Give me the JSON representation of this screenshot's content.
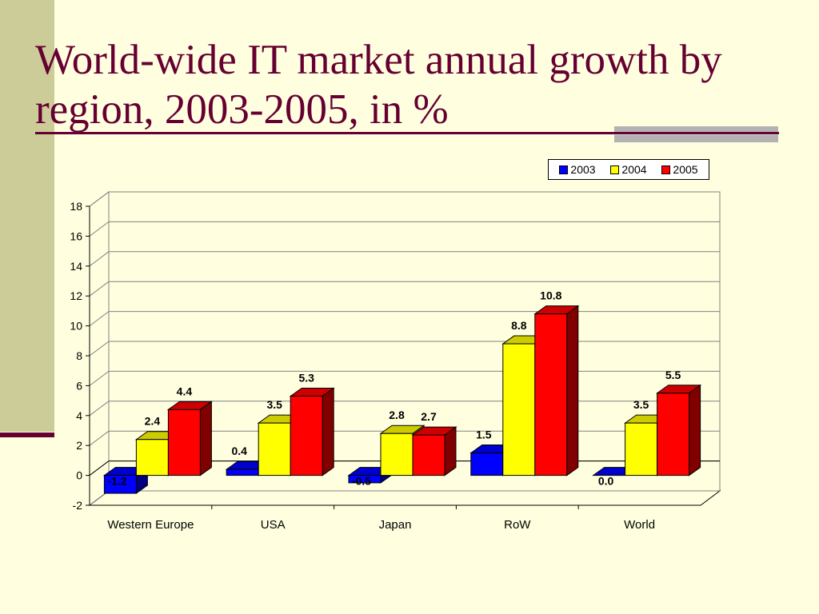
{
  "slide": {
    "title": "World-wide IT market annual growth by region, 2003-2005, in %"
  },
  "chart_data": {
    "type": "bar",
    "title": "World-wide IT market annual growth by region, 2003-2005, in %",
    "categories": [
      "Western Europe",
      "USA",
      "Japan",
      "RoW",
      "World"
    ],
    "series": [
      {
        "name": "2003",
        "color": "#0000FF",
        "values": [
          -1.2,
          0.4,
          -0.5,
          1.5,
          0.0
        ],
        "labels": [
          "-1.2",
          "0.4",
          "-0.5",
          "1.5",
          "0.0"
        ]
      },
      {
        "name": "2004",
        "color": "#FFFF00",
        "values": [
          2.4,
          3.5,
          2.8,
          8.8,
          3.5
        ],
        "labels": [
          "2.4",
          "3.5",
          "2.8",
          "8.8",
          "3.5"
        ]
      },
      {
        "name": "2005",
        "color": "#FF0000",
        "values": [
          4.4,
          5.3,
          2.7,
          10.8,
          5.5
        ],
        "labels": [
          "4.4",
          "5.3",
          "2.7",
          "10.8",
          "5.5"
        ]
      }
    ],
    "ylim": [
      -2,
      18
    ],
    "yticks": [
      "-2",
      "0",
      "2",
      "4",
      "6",
      "8",
      "10",
      "12",
      "14",
      "16",
      "18"
    ],
    "xlabel": "",
    "ylabel": "",
    "grid": true,
    "legend_position": "top-right",
    "style": "3d"
  }
}
